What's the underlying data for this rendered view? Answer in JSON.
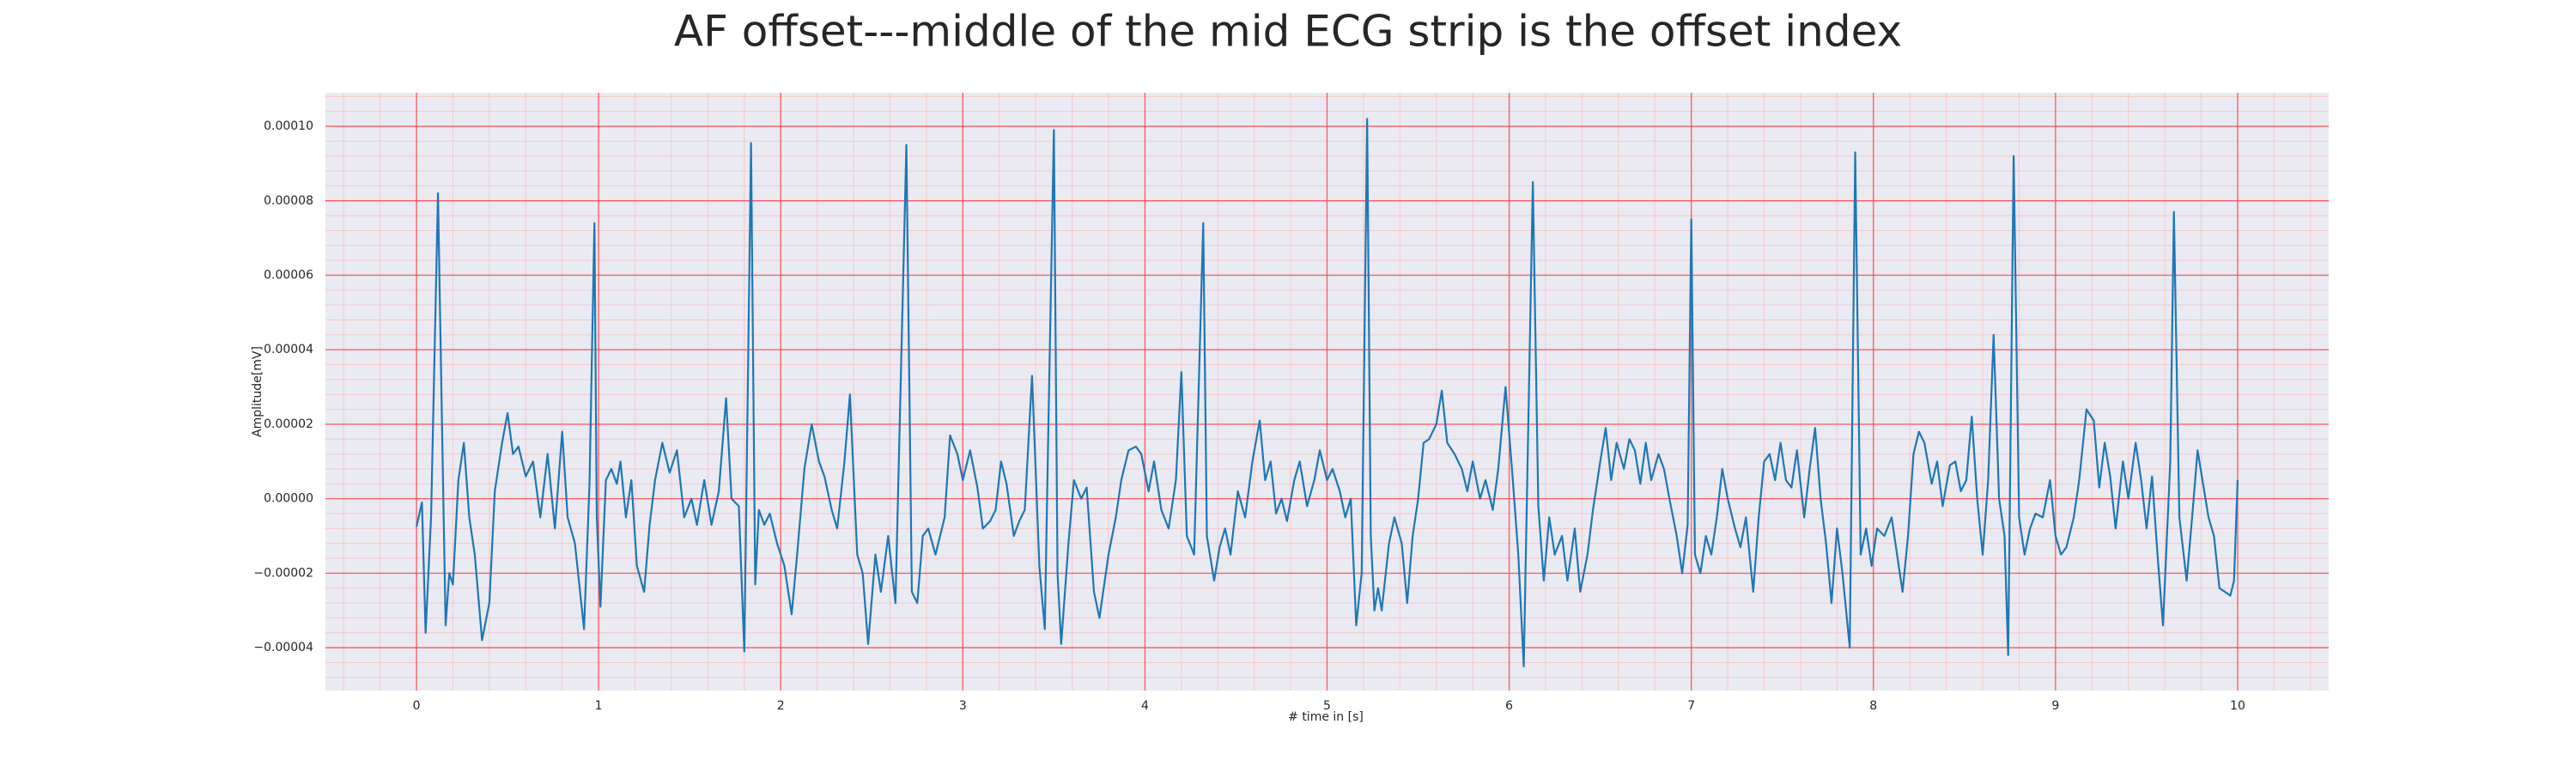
{
  "chart_data": {
    "type": "line",
    "title": "AF offset---middle of the mid ECG strip is the offset index",
    "x_label": "# time in [s]",
    "y_label": "Amplitude[mV]",
    "color": "#1f77b4",
    "grid": true,
    "minor_grid": true,
    "xlim": [
      -0.5,
      10.5
    ],
    "ylim": [
      -5.15e-05,
      0.000109
    ],
    "xticks": [
      0,
      1,
      2,
      3,
      4,
      5,
      6,
      7,
      8,
      9,
      10
    ],
    "yticks": [
      {
        "value": -4e-05,
        "label": "−0.00004"
      },
      {
        "value": -2e-05,
        "label": "−0.00002"
      },
      {
        "value": 0,
        "label": "0.00000"
      },
      {
        "value": 2e-05,
        "label": "0.00002"
      },
      {
        "value": 4e-05,
        "label": "0.00004"
      },
      {
        "value": 6e-05,
        "label": "0.00006"
      },
      {
        "value": 8e-05,
        "label": "0.00008"
      },
      {
        "value": 0.0001,
        "label": "0.00010"
      }
    ],
    "x": [
      0.0,
      0.03,
      0.05,
      0.08,
      0.118,
      0.14,
      0.16,
      0.18,
      0.2,
      0.23,
      0.26,
      0.29,
      0.32,
      0.36,
      0.4,
      0.43,
      0.47,
      0.5,
      0.53,
      0.56,
      0.6,
      0.64,
      0.68,
      0.72,
      0.76,
      0.8,
      0.83,
      0.87,
      0.92,
      0.95,
      0.977,
      0.99,
      1.01,
      1.04,
      1.07,
      1.1,
      1.12,
      1.15,
      1.18,
      1.21,
      1.25,
      1.28,
      1.31,
      1.35,
      1.39,
      1.43,
      1.47,
      1.51,
      1.54,
      1.58,
      1.62,
      1.66,
      1.7,
      1.73,
      1.77,
      1.8,
      1.837,
      1.86,
      1.88,
      1.91,
      1.94,
      1.98,
      2.02,
      2.06,
      2.09,
      2.13,
      2.17,
      2.21,
      2.24,
      2.28,
      2.31,
      2.35,
      2.38,
      2.42,
      2.45,
      2.48,
      2.52,
      2.55,
      2.59,
      2.63,
      2.69,
      2.72,
      2.75,
      2.78,
      2.81,
      2.85,
      2.9,
      2.93,
      2.97,
      3.0,
      3.04,
      3.08,
      3.11,
      3.15,
      3.18,
      3.21,
      3.24,
      3.28,
      3.31,
      3.34,
      3.38,
      3.42,
      3.45,
      3.47,
      3.5,
      3.52,
      3.54,
      3.58,
      3.61,
      3.65,
      3.68,
      3.72,
      3.75,
      3.8,
      3.84,
      3.87,
      3.91,
      3.95,
      3.98,
      4.02,
      4.05,
      4.09,
      4.13,
      4.17,
      4.2,
      4.23,
      4.27,
      4.32,
      4.34,
      4.38,
      4.41,
      4.44,
      4.47,
      4.51,
      4.55,
      4.59,
      4.63,
      4.66,
      4.69,
      4.72,
      4.75,
      4.78,
      4.82,
      4.85,
      4.89,
      4.93,
      4.96,
      5.0,
      5.03,
      5.07,
      5.1,
      5.13,
      5.16,
      5.19,
      5.22,
      5.24,
      5.26,
      5.28,
      5.3,
      5.34,
      5.37,
      5.41,
      5.44,
      5.47,
      5.5,
      5.53,
      5.56,
      5.6,
      5.63,
      5.66,
      5.7,
      5.74,
      5.77,
      5.8,
      5.84,
      5.87,
      5.91,
      5.94,
      5.98,
      6.02,
      6.05,
      6.08,
      6.13,
      6.16,
      6.19,
      6.22,
      6.25,
      6.29,
      6.32,
      6.36,
      6.39,
      6.43,
      6.46,
      6.5,
      6.53,
      6.56,
      6.59,
      6.63,
      6.66,
      6.69,
      6.72,
      6.75,
      6.78,
      6.82,
      6.85,
      6.88,
      6.92,
      6.95,
      6.98,
      7.0,
      7.02,
      7.05,
      7.08,
      7.11,
      7.14,
      7.17,
      7.2,
      7.24,
      7.27,
      7.3,
      7.34,
      7.37,
      7.4,
      7.43,
      7.46,
      7.49,
      7.52,
      7.55,
      7.58,
      7.62,
      7.65,
      7.68,
      7.71,
      7.74,
      7.77,
      7.8,
      7.83,
      7.87,
      7.9,
      7.93,
      7.96,
      7.99,
      8.02,
      8.06,
      8.1,
      8.13,
      8.16,
      8.19,
      8.22,
      8.25,
      8.28,
      8.32,
      8.35,
      8.38,
      8.42,
      8.45,
      8.48,
      8.51,
      8.54,
      8.57,
      8.6,
      8.63,
      8.66,
      8.69,
      8.72,
      8.74,
      8.77,
      8.8,
      8.83,
      8.86,
      8.89,
      8.93,
      8.97,
      9.0,
      9.03,
      9.06,
      9.1,
      9.13,
      9.17,
      9.21,
      9.24,
      9.27,
      9.3,
      9.33,
      9.37,
      9.4,
      9.44,
      9.47,
      9.5,
      9.53,
      9.56,
      9.59,
      9.63,
      9.65,
      9.68,
      9.72,
      9.75,
      9.78,
      9.81,
      9.84,
      9.87,
      9.9,
      9.93,
      9.96,
      9.98,
      10.0
    ],
    "values": [
      -7.5e-06,
      -1e-06,
      -3.6e-05,
      -5e-06,
      8.2e-05,
      2e-05,
      -3.4e-05,
      -2e-05,
      -2.3e-05,
      5e-06,
      1.5e-05,
      -5e-06,
      -1.5e-05,
      -3.8e-05,
      -2.8e-05,
      2e-06,
      1.5e-05,
      2.3e-05,
      1.2e-05,
      1.4e-05,
      6e-06,
      1e-05,
      -5e-06,
      1.2e-05,
      -8e-06,
      1.8e-05,
      -5e-06,
      -1.2e-05,
      -3.5e-05,
      4e-06,
      7.4e-05,
      -5e-06,
      -2.9e-05,
      5e-06,
      8e-06,
      4e-06,
      1e-05,
      -5e-06,
      5e-06,
      -1.8e-05,
      -2.5e-05,
      -7e-06,
      5e-06,
      1.5e-05,
      7e-06,
      1.3e-05,
      -5e-06,
      0.0,
      -7e-06,
      5e-06,
      -7e-06,
      2e-06,
      2.7e-05,
      0.0,
      -2e-06,
      -4.1e-05,
      9.55e-05,
      -2.3e-05,
      -3e-06,
      -7e-06,
      -4e-06,
      -1.2e-05,
      -1.8e-05,
      -3.1e-05,
      -1.5e-05,
      8e-06,
      2e-05,
      1e-05,
      6e-06,
      -3e-06,
      -8e-06,
      1e-05,
      2.8e-05,
      -1.5e-05,
      -2e-05,
      -3.9e-05,
      -1.5e-05,
      -2.5e-05,
      -1e-05,
      -2.8e-05,
      9.5e-05,
      -2.5e-05,
      -2.8e-05,
      -1e-05,
      -8e-06,
      -1.5e-05,
      -5e-06,
      1.7e-05,
      1.2e-05,
      5e-06,
      1.3e-05,
      3e-06,
      -8e-06,
      -6e-06,
      -3e-06,
      1e-05,
      4e-06,
      -1e-05,
      -6e-06,
      -3e-06,
      3.3e-05,
      -1.8e-05,
      -3.5e-05,
      2e-05,
      9.9e-05,
      -2e-05,
      -3.9e-05,
      -1.2e-05,
      5e-06,
      0.0,
      3e-06,
      -2.5e-05,
      -3.2e-05,
      -1.5e-05,
      -5e-06,
      5e-06,
      1.3e-05,
      1.4e-05,
      1.2e-05,
      2e-06,
      1e-05,
      -3e-06,
      -8e-06,
      5e-06,
      3.4e-05,
      -1e-05,
      -1.5e-05,
      7.4e-05,
      -1e-05,
      -2.2e-05,
      -1.3e-05,
      -8e-06,
      -1.5e-05,
      2e-06,
      -5e-06,
      1e-05,
      2.1e-05,
      5e-06,
      1e-05,
      -4e-06,
      0.0,
      -6e-06,
      5e-06,
      1e-05,
      -2e-06,
      5e-06,
      1.3e-05,
      5e-06,
      8e-06,
      2e-06,
      -5e-06,
      0.0,
      -3.4e-05,
      -2e-05,
      0.000102,
      -1e-05,
      -3e-05,
      -2.4e-05,
      -3e-05,
      -1.2e-05,
      -5e-06,
      -1.2e-05,
      -2.8e-05,
      -1e-05,
      0.0,
      1.5e-05,
      1.6e-05,
      2e-05,
      2.9e-05,
      1.5e-05,
      1.2e-05,
      8e-06,
      2e-06,
      1e-05,
      0.0,
      5e-06,
      -3e-06,
      8e-06,
      3e-05,
      5e-06,
      -1.5e-05,
      -4.5e-05,
      8.5e-05,
      -2e-06,
      -2.2e-05,
      -5e-06,
      -1.5e-05,
      -1e-05,
      -2.2e-05,
      -8e-06,
      -2.5e-05,
      -1.5e-05,
      -3e-06,
      1e-05,
      1.9e-05,
      5e-06,
      1.5e-05,
      8e-06,
      1.6e-05,
      1.3e-05,
      4e-06,
      1.5e-05,
      5e-06,
      1.2e-05,
      8e-06,
      0.0,
      -1e-05,
      -2e-05,
      -7e-06,
      7.5e-05,
      -1.5e-05,
      -2e-05,
      -1e-05,
      -1.5e-05,
      -5e-06,
      8e-06,
      0.0,
      -8e-06,
      -1.3e-05,
      -5e-06,
      -2.5e-05,
      -5e-06,
      1e-05,
      1.2e-05,
      5e-06,
      1.5e-05,
      5e-06,
      3e-06,
      1.3e-05,
      -5e-06,
      8e-06,
      1.9e-05,
      0.0,
      -1.2e-05,
      -2.8e-05,
      -8e-06,
      -2e-05,
      -4e-05,
      9.3e-05,
      -1.5e-05,
      -8e-06,
      -1.8e-05,
      -8e-06,
      -1e-05,
      -5e-06,
      -1.5e-05,
      -2.5e-05,
      -1e-05,
      1.2e-05,
      1.8e-05,
      1.5e-05,
      4e-06,
      1e-05,
      -2e-06,
      9e-06,
      1e-05,
      2e-06,
      5e-06,
      2.2e-05,
      0.0,
      -1.5e-05,
      5e-06,
      4.4e-05,
      0.0,
      -1e-05,
      -4.2e-05,
      9.2e-05,
      -5e-06,
      -1.5e-05,
      -8e-06,
      -4e-06,
      -5e-06,
      5e-06,
      -1e-05,
      -1.5e-05,
      -1.3e-05,
      -5e-06,
      5e-06,
      2.4e-05,
      2.1e-05,
      3e-06,
      1.5e-05,
      6e-06,
      -8e-06,
      1e-05,
      0.0,
      1.5e-05,
      5e-06,
      -8e-06,
      6e-06,
      -1.5e-05,
      -3.4e-05,
      1e-05,
      7.7e-05,
      -5e-06,
      -2.2e-05,
      -5e-06,
      1.3e-05,
      4e-06,
      -5e-06,
      -1e-05,
      -2.4e-05,
      -2.5e-05,
      -2.6e-05,
      -2.2e-05,
      5e-06
    ]
  }
}
